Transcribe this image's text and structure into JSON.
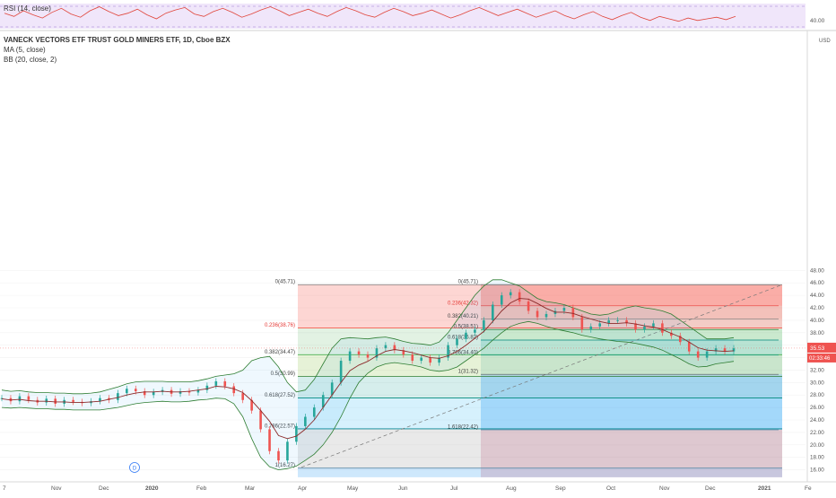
{
  "rsi_panel": {
    "label": "RSI (14, close)",
    "ticks": [
      {
        "value": 40,
        "label": "40.00"
      }
    ],
    "series": [
      52,
      48,
      55,
      50,
      46,
      53,
      58,
      51,
      47,
      55,
      60,
      54,
      49,
      52,
      57,
      50,
      45,
      52,
      56,
      59,
      51,
      48,
      54,
      58,
      53,
      47,
      51,
      56,
      60,
      55,
      49,
      53,
      57,
      52,
      48,
      54,
      59,
      55,
      50,
      47,
      53,
      58,
      54,
      49,
      52,
      56,
      51,
      46,
      50,
      55,
      59,
      54,
      49,
      53,
      57,
      52,
      47,
      51,
      55,
      49,
      45,
      50,
      54,
      48,
      44,
      49,
      53,
      47,
      43,
      48,
      45,
      42,
      46,
      43,
      45,
      47,
      44,
      48
    ]
  },
  "header": {
    "title": "VANECK VECTORS ETF TRUST GOLD MINERS ETF, 1D, Cboe BZX",
    "ma_label": "MA (5, close)",
    "bb_label": "BB (20, close, 2)"
  },
  "price_axis": {
    "currency": "USD",
    "ticks": [
      "16.00",
      "18.00",
      "20.00",
      "22.00",
      "24.00",
      "26.00",
      "28.00",
      "30.00",
      "32.00",
      "34.00",
      "36.00",
      "38.00",
      "40.00",
      "42.00",
      "44.00",
      "46.00",
      "48.00"
    ],
    "last_price": "35.53",
    "countdown": "02:33:46"
  },
  "time_axis": {
    "labels": [
      "7",
      "Nov",
      "Dec",
      "2020",
      "Feb",
      "Mar",
      "Apr",
      "May",
      "Jun",
      "Jul",
      "Aug",
      "Sep",
      "Oct",
      "Nov",
      "Dec",
      "2021",
      "Fe"
    ]
  },
  "fib_left": [
    {
      "ratio": "0",
      "value": 45.71,
      "label": "0(45.71)"
    },
    {
      "ratio": "0.236",
      "value": 38.76,
      "label": "0.236(38.76)"
    },
    {
      "ratio": "0.382",
      "value": 34.47,
      "label": "0.382(34.47)"
    },
    {
      "ratio": "0.5",
      "value": 30.99,
      "label": "0.5(30.99)"
    },
    {
      "ratio": "0.618",
      "value": 27.52,
      "label": "0.618(27.52)"
    },
    {
      "ratio": "0.786",
      "value": 22.57,
      "label": "0.786(22.57)"
    },
    {
      "ratio": "1",
      "value": 16.27,
      "label": "1(16.27)"
    }
  ],
  "fib_right": [
    {
      "ratio": "0",
      "value": 45.71,
      "label": "0(45.71)"
    },
    {
      "ratio": "0.236",
      "value": 42.32,
      "label": "0.236(42.32)"
    },
    {
      "ratio": "0.382",
      "value": 40.21,
      "label": "0.382(40.21)"
    },
    {
      "ratio": "0.5",
      "value": 38.51,
      "label": "0.5(38.51)"
    },
    {
      "ratio": "0.618",
      "value": 36.82,
      "label": "0.618(36.82)"
    },
    {
      "ratio": "0.786",
      "value": 34.4,
      "label": "0.786(34.40)"
    },
    {
      "ratio": "1",
      "value": 31.32,
      "label": "1(31.32)"
    },
    {
      "ratio": "1.618",
      "value": 22.42,
      "label": "1.618(22.42)"
    }
  ],
  "event_marker": "D",
  "chart_data": {
    "type": "candlestick",
    "title": "VANECK VECTORS ETF TRUST GOLD MINERS ETF, 1D, Cboe BZX",
    "x_labels": [
      "7",
      "Nov",
      "Dec",
      "2020",
      "Feb",
      "Mar",
      "Apr",
      "May",
      "Jun",
      "Jul",
      "Aug",
      "Sep",
      "Oct",
      "Nov",
      "Dec",
      "2021",
      "Fe"
    ],
    "ylim": [
      15,
      49
    ],
    "series": [
      {
        "name": "Price",
        "values": [
          27.5,
          27.0,
          27.8,
          27.2,
          26.8,
          27.4,
          26.6,
          27.2,
          26.9,
          26.7,
          27.0,
          27.5,
          27.2,
          28.3,
          29.0,
          28.6,
          28.0,
          28.5,
          28.8,
          28.2,
          28.6,
          28.4,
          28.8,
          29.5,
          30.2,
          29.4,
          28.3,
          27.2,
          25.5,
          22.5,
          19.0,
          17.5,
          20.5,
          23.0,
          24.5,
          26.0,
          28.0,
          30.0,
          33.5,
          35.0,
          34.5,
          34.0,
          35.5,
          36.0,
          35.2,
          34.5,
          33.5,
          34.0,
          33.2,
          34.0,
          36.0,
          37.0,
          38.0,
          38.5,
          40.0,
          42.5,
          44.0,
          44.5,
          43.0,
          41.5,
          40.5,
          41.0,
          41.5,
          42.0,
          40.5,
          38.5,
          39.0,
          39.5,
          40.0,
          40.0,
          39.5,
          38.5,
          39.0,
          39.5,
          38.0,
          37.5,
          36.5,
          35.0,
          34.0,
          35.0,
          35.5,
          35.0,
          35.5
        ]
      },
      {
        "name": "MA (5, close)",
        "values": [
          27.4,
          27.2,
          27.3,
          27.1,
          27.0,
          27.0,
          26.9,
          26.9,
          26.8,
          26.8,
          26.9,
          27.0,
          27.3,
          27.6,
          28.0,
          28.3,
          28.5,
          28.5,
          28.6,
          28.5,
          28.5,
          28.6,
          28.8,
          29.0,
          29.4,
          29.3,
          29.0,
          28.4,
          27.1,
          25.5,
          23.8,
          21.5,
          21.0,
          21.4,
          22.5,
          24.0,
          26.0,
          28.0,
          30.0,
          31.9,
          32.8,
          33.4,
          34.3,
          35.0,
          35.3,
          35.1,
          34.8,
          34.4,
          34.0,
          33.9,
          34.3,
          35.0,
          36.0,
          37.1,
          38.2,
          39.8,
          41.5,
          42.8,
          43.5,
          43.4,
          42.7,
          41.9,
          41.3,
          41.3,
          41.1,
          40.6,
          40.2,
          39.8,
          39.5,
          39.5,
          39.6,
          39.4,
          39.1,
          38.9,
          38.5,
          37.9,
          37.3,
          36.5,
          35.6,
          35.2,
          35.1,
          35.0,
          35.1
        ]
      },
      {
        "name": "BB upper",
        "values": [
          28.8,
          28.6,
          28.7,
          28.5,
          28.4,
          28.4,
          28.3,
          28.3,
          28.2,
          28.2,
          28.3,
          28.5,
          28.9,
          29.3,
          29.8,
          30.1,
          30.2,
          30.2,
          30.2,
          30.1,
          30.1,
          30.1,
          30.3,
          30.6,
          31.0,
          31.2,
          31.4,
          32.0,
          33.5,
          34.0,
          34.2,
          32.5,
          30.0,
          28.5,
          28.8,
          30.5,
          33.0,
          35.5,
          37.0,
          37.2,
          37.1,
          37.0,
          37.2,
          37.3,
          37.0,
          36.6,
          36.3,
          36.2,
          36.0,
          36.5,
          38.0,
          40.0,
          42.0,
          44.0,
          45.5,
          46.5,
          46.5,
          46.0,
          45.5,
          44.5,
          43.5,
          43.0,
          42.8,
          42.5,
          42.0,
          41.5,
          41.0,
          40.8,
          41.0,
          41.5,
          42.0,
          42.3,
          42.0,
          41.8,
          41.5,
          41.0,
          40.0,
          39.0,
          38.0,
          37.0,
          37.0,
          37.0,
          37.2
        ]
      },
      {
        "name": "BB lower",
        "values": [
          26.0,
          25.9,
          26.0,
          25.9,
          25.8,
          25.8,
          25.7,
          25.7,
          25.6,
          25.6,
          25.6,
          25.6,
          25.8,
          26.0,
          26.3,
          26.6,
          26.8,
          26.9,
          27.0,
          26.9,
          26.9,
          27.0,
          27.2,
          27.3,
          27.5,
          27.4,
          26.6,
          24.5,
          21.0,
          18.0,
          16.5,
          16.0,
          16.2,
          16.6,
          17.5,
          18.5,
          20.0,
          22.0,
          24.5,
          27.5,
          30.0,
          31.5,
          32.5,
          33.0,
          33.2,
          33.0,
          32.8,
          32.5,
          32.0,
          31.8,
          32.0,
          32.5,
          33.5,
          34.5,
          35.5,
          36.8,
          38.0,
          39.0,
          39.5,
          39.8,
          39.5,
          39.0,
          38.6,
          38.3,
          38.0,
          37.6,
          37.3,
          37.0,
          36.8,
          36.6,
          36.5,
          36.3,
          36.0,
          35.7,
          35.2,
          34.5,
          33.8,
          33.0,
          32.5,
          32.6,
          33.0,
          33.2,
          33.4
        ]
      }
    ]
  }
}
